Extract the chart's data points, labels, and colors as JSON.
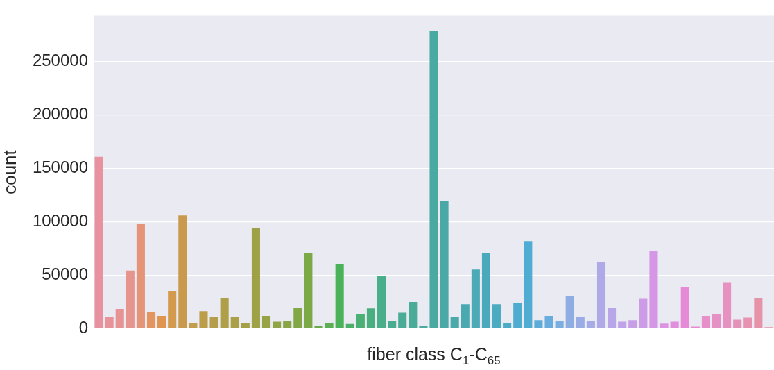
{
  "chart_data": {
    "type": "bar",
    "xlabel": "fiber class C$_{1}$-C$_{65}$",
    "ylabel": "count",
    "categories": [
      null,
      null,
      null,
      null,
      null,
      null,
      null,
      null,
      null,
      null,
      null,
      null,
      null,
      null,
      null,
      null,
      null,
      null,
      null,
      null,
      null,
      null,
      null,
      null,
      null,
      null,
      null,
      null,
      null,
      null,
      null,
      null,
      null,
      null,
      null,
      null,
      null,
      null,
      null,
      null,
      null,
      null,
      null,
      null,
      null,
      null,
      null,
      null,
      null,
      null,
      null,
      null,
      null,
      null,
      null,
      null,
      null,
      null,
      null,
      null,
      null,
      null,
      null,
      null,
      null
    ],
    "values": [
      161000,
      11000,
      18500,
      54500,
      98000,
      15500,
      12000,
      35500,
      106000,
      5500,
      16500,
      11000,
      29000,
      11500,
      5500,
      94000,
      12000,
      6500,
      7500,
      19500,
      70500,
      2500,
      5500,
      60500,
      4500,
      14000,
      19000,
      49500,
      7000,
      15000,
      25000,
      3000,
      279000,
      119500,
      11500,
      23000,
      55500,
      71000,
      23000,
      5500,
      24000,
      82000,
      8000,
      12000,
      7000,
      30500,
      11000,
      7500,
      62000,
      19500,
      6500,
      8000,
      28000,
      72500,
      4800,
      6500,
      39000,
      2000,
      12000,
      13500,
      43500,
      8500,
      10500,
      28500,
      1500
    ],
    "colors": [
      "#e8919f",
      "#e8929a",
      "#e79394",
      "#e6948d",
      "#e59477",
      "#e4955f",
      "#df9450",
      "#d39a4e",
      "#c99a4c",
      "#c29d4b",
      "#bc9d4a",
      "#b59e49",
      "#ae9f48",
      "#a9a047",
      "#a3a046",
      "#9ea145",
      "#97a345",
      "#91a545",
      "#89a645",
      "#82a846",
      "#7aa946",
      "#6aac4c",
      "#5cae52",
      "#4cb25a",
      "#4bb16a",
      "#4bb074",
      "#4aaf7f",
      "#4aae8a",
      "#4aad8f",
      "#4aac94",
      "#4aab99",
      "#4aaa9c",
      "#4aa9a0",
      "#4aa9a6",
      "#4aa9ab",
      "#4aa9b0",
      "#4aaab6",
      "#4aaabb",
      "#4babc1",
      "#4cabc7",
      "#4eacce",
      "#50acd3",
      "#5cacd9",
      "#68addd",
      "#7aade0",
      "#8eaee3",
      "#9aace6",
      "#a5abe7",
      "#b0a9e8",
      "#b9a6e8",
      "#c0a2e8",
      "#c69fe7",
      "#ce9be6",
      "#d597e5",
      "#dc93e0",
      "#e18fdc",
      "#e68ad8",
      "#e68dd0",
      "#e68fc9",
      "#e690c5",
      "#e691c0",
      "#e692b8",
      "#e692b0",
      "#e693aa",
      "#e894a4"
    ],
    "ylim": [
      0,
      293000
    ],
    "yticks": [
      0,
      50000,
      100000,
      150000,
      200000,
      250000
    ],
    "grid": "y",
    "tick_labels": "y"
  }
}
